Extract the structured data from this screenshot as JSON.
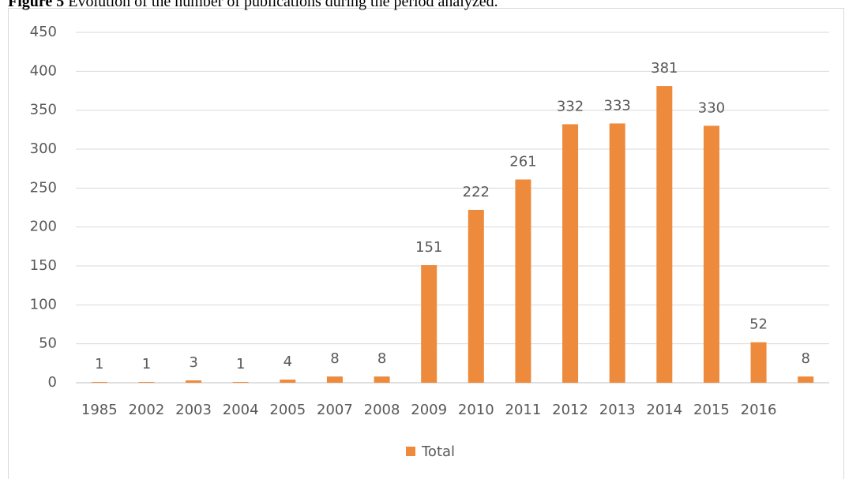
{
  "chart_data": {
    "type": "bar",
    "title_label": "Figure 5",
    "title": "Evolution of the number of publications during the period analyzed.",
    "categories": [
      "1985",
      "2002",
      "2003",
      "2004",
      "2005",
      "2007",
      "2008",
      "2009",
      "2010",
      "2011",
      "2012",
      "2013",
      "2014",
      "2015",
      "2016",
      null
    ],
    "series": [
      {
        "name": "Total",
        "color": "#ed8a3b",
        "values": [
          1,
          1,
          3,
          1,
          4,
          8,
          8,
          151,
          222,
          261,
          332,
          333,
          381,
          330,
          52,
          8
        ]
      }
    ],
    "ylim": [
      0,
      450
    ],
    "yticks": [
      0,
      50,
      100,
      150,
      200,
      250,
      300,
      350,
      400,
      450
    ],
    "grid": true,
    "legend": "bottom"
  }
}
